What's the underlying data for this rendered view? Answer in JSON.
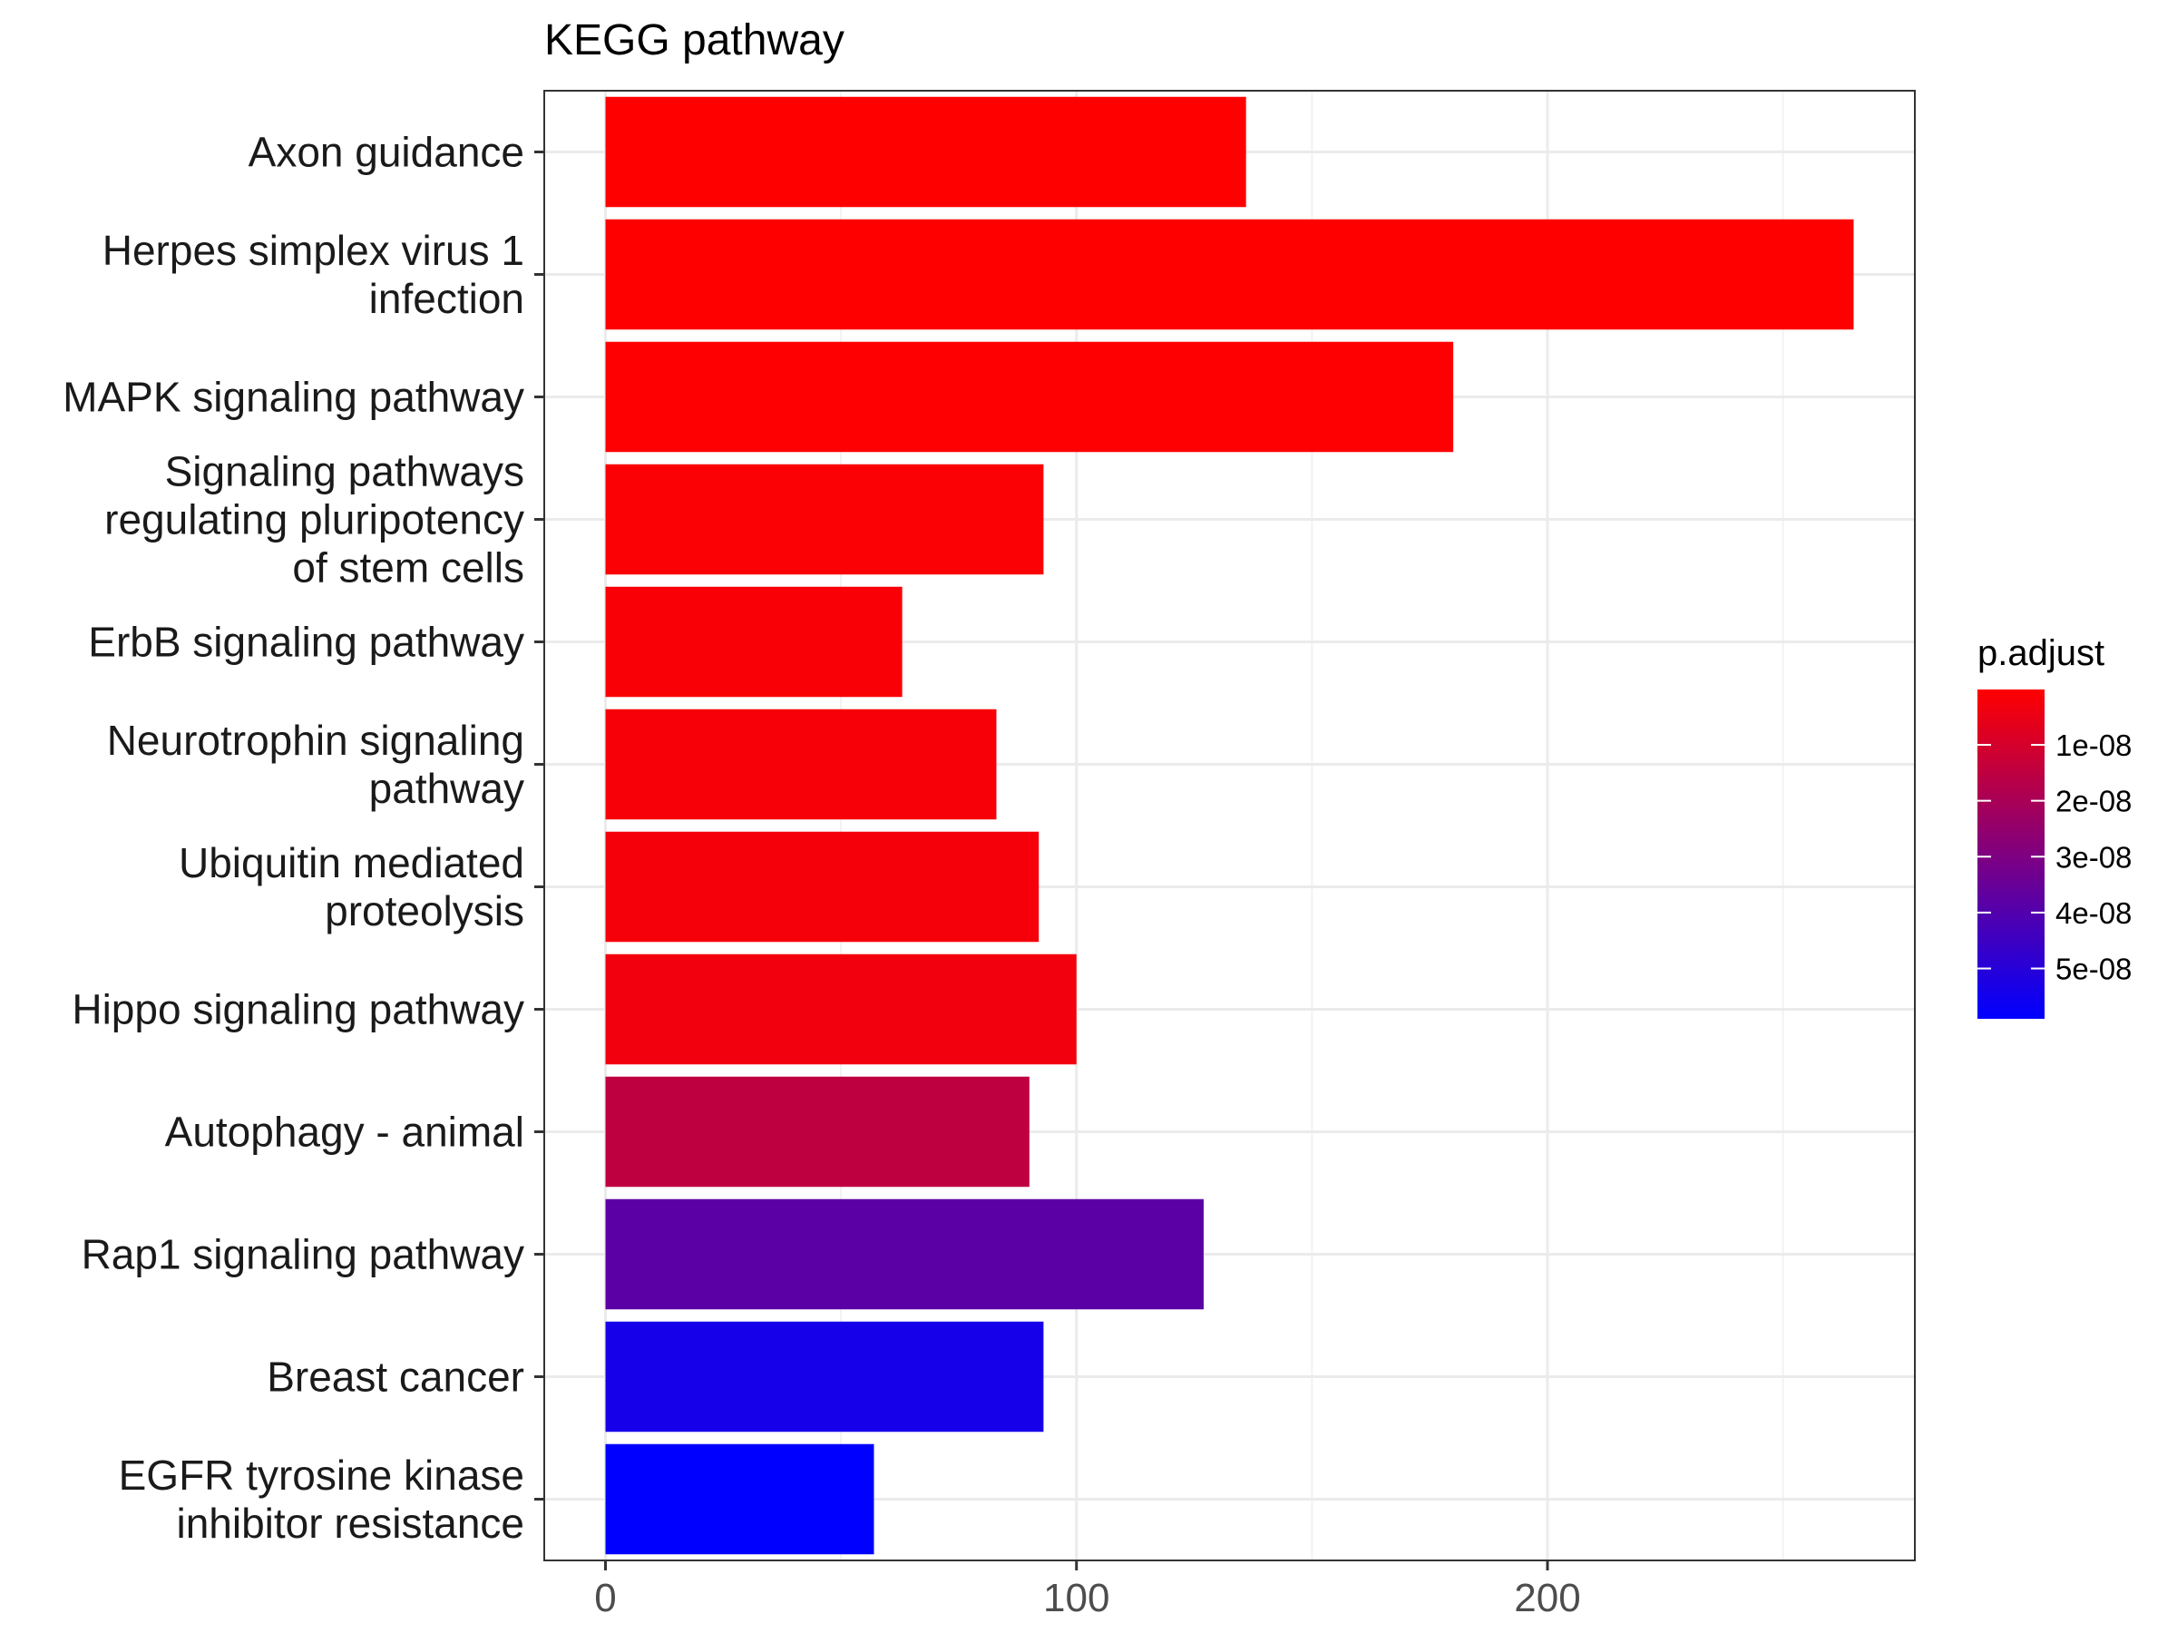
{
  "chart_data": {
    "type": "bar",
    "orientation": "horizontal",
    "title": "KEGG pathway",
    "xlabel": "",
    "ylabel": "",
    "xlim": [
      -13,
      278
    ],
    "x_ticks": [
      0,
      100,
      200
    ],
    "x_tick_labels": [
      "0",
      "100",
      "200"
    ],
    "grid": true,
    "categories": [
      [
        "Axon guidance"
      ],
      [
        "Herpes simplex virus 1",
        "infection"
      ],
      [
        "MAPK signaling pathway"
      ],
      [
        "Signaling pathways",
        "regulating pluripotency",
        "of stem cells"
      ],
      [
        "ErbB signaling pathway"
      ],
      [
        "Neurotrophin signaling",
        "pathway"
      ],
      [
        "Ubiquitin mediated",
        "proteolysis"
      ],
      [
        "Hippo signaling pathway"
      ],
      [
        "Autophagy - animal"
      ],
      [
        "Rap1 signaling pathway"
      ],
      [
        "Breast cancer"
      ],
      [
        "EGFR tyrosine kinase",
        "inhibitor resistance"
      ]
    ],
    "values": [
      136,
      265,
      180,
      93,
      63,
      83,
      92,
      100,
      90,
      127,
      93,
      57
    ],
    "p_adjust": [
      1e-10,
      1e-10,
      3e-10,
      1e-09,
      1.5e-09,
      2e-09,
      2.5e-09,
      3e-09,
      1.5e-08,
      3.8e-08,
      5.4e-08,
      5.9e-08
    ],
    "legend": {
      "title": "p.adjust",
      "position": "right",
      "range": [
        1e-10,
        5.9e-08
      ],
      "low_color": "#FF0000",
      "high_color": "#0000FF",
      "ticks": [
        1e-08,
        2e-08,
        3e-08,
        4e-08,
        5e-08
      ],
      "tick_labels": [
        "1e-08",
        "2e-08",
        "3e-08",
        "4e-08",
        "5e-08"
      ]
    }
  }
}
